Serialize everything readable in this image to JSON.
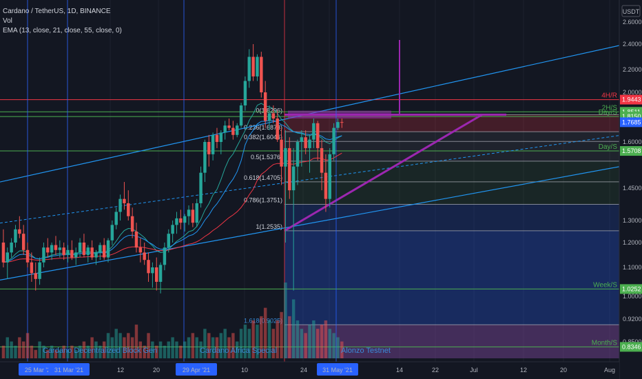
{
  "legend": {
    "symbol": "Cardano / TetherUS, 1D, BINANCE",
    "volume": "Vol",
    "ema": "EMA (13, close, 21, close, 55, close, 0)"
  },
  "axis": {
    "currency": "USDT",
    "price_ticks": [
      "2.6000",
      "2.4000",
      "2.2000",
      "2.0000",
      "1.8000",
      "1.6000",
      "1.4500",
      "1.3000",
      "1.2000",
      "1.1000",
      "1.0000",
      "0.9200",
      "0.8500"
    ],
    "date_ticks": [
      "25 Mar '21",
      "31 Mar '21",
      "12",
      "20",
      "29 Apr '21",
      "10",
      "24",
      "31 May '21",
      "14",
      "22",
      "Jul",
      "12",
      "20",
      "Aug"
    ]
  },
  "price_badges": [
    {
      "value": "1.9443",
      "color": "#f23645"
    },
    {
      "value": "1.8511",
      "color": "#4caf50"
    },
    {
      "value": "1.8150",
      "color": "#4caf50"
    },
    {
      "value": "1.7685",
      "color": "#2962ff"
    },
    {
      "value": "1.5708",
      "color": "#4caf50"
    },
    {
      "value": "1.0252",
      "color": "#4caf50"
    },
    {
      "value": "0.8346",
      "color": "#4caf50"
    }
  ],
  "levels": [
    {
      "label": "4H/R",
      "value": 1.9443,
      "color": "#f23645"
    },
    {
      "label": "2H/S",
      "value": 1.8511,
      "color": "#4caf50"
    },
    {
      "label": "Day/S",
      "value": 1.815,
      "color": "#4caf50"
    },
    {
      "label": "Day/S",
      "value": 1.5708,
      "color": "#4caf50"
    },
    {
      "label": "Week/S",
      "value": 1.0252,
      "color": "#4caf50"
    },
    {
      "label": "Month/S",
      "value": 0.8346,
      "color": "#4caf50"
    }
  ],
  "fib_labels": [
    "0(1.8296)",
    "0.236(1.6873)",
    "0.382(1.6046)",
    "0.5(1.5376)",
    "0.618(1.4705)",
    "0.786(1.3751)",
    "1(1.2535)",
    "1.618(0.9025)"
  ],
  "events": [
    {
      "label": "Cardano Decentralized Block Gen",
      "color": "#3a8bd8"
    },
    {
      "label": "Cardano Africa Special",
      "color": "#3a8bd8"
    },
    {
      "label": "Alonzo Testnet",
      "color": "#3a8bd8"
    }
  ],
  "chart_data": {
    "type": "candlestick",
    "title": "Cardano / TetherUS, 1D, BINANCE",
    "x_start": "2021-03-04",
    "y_range": [
      0.8,
      2.66
    ],
    "candles": [
      [
        1.2,
        1.26,
        1.1,
        1.12
      ],
      [
        1.12,
        1.18,
        1.06,
        1.16
      ],
      [
        1.16,
        1.22,
        1.14,
        1.2
      ],
      [
        1.2,
        1.28,
        1.18,
        1.26
      ],
      [
        1.26,
        1.32,
        1.22,
        1.24
      ],
      [
        1.24,
        1.28,
        1.15,
        1.17
      ],
      [
        1.17,
        1.2,
        1.1,
        1.12
      ],
      [
        1.12,
        1.16,
        1.05,
        1.08
      ],
      [
        1.08,
        1.12,
        1.02,
        1.06
      ],
      [
        1.06,
        1.14,
        1.04,
        1.12
      ],
      [
        1.12,
        1.2,
        1.1,
        1.18
      ],
      [
        1.18,
        1.22,
        1.14,
        1.16
      ],
      [
        1.16,
        1.2,
        1.13,
        1.19
      ],
      [
        1.19,
        1.23,
        1.15,
        1.17
      ],
      [
        1.17,
        1.21,
        1.14,
        1.18
      ],
      [
        1.18,
        1.2,
        1.13,
        1.15
      ],
      [
        1.15,
        1.19,
        1.12,
        1.17
      ],
      [
        1.17,
        1.21,
        1.13,
        1.14
      ],
      [
        1.14,
        1.18,
        1.11,
        1.16
      ],
      [
        1.16,
        1.22,
        1.14,
        1.2
      ],
      [
        1.2,
        1.24,
        1.14,
        1.15
      ],
      [
        1.15,
        1.19,
        1.12,
        1.18
      ],
      [
        1.18,
        1.21,
        1.13,
        1.14
      ],
      [
        1.14,
        1.17,
        1.11,
        1.16
      ],
      [
        1.16,
        1.2,
        1.13,
        1.19
      ],
      [
        1.19,
        1.22,
        1.13,
        1.14
      ],
      [
        1.14,
        1.22,
        1.12,
        1.21
      ],
      [
        1.21,
        1.3,
        1.19,
        1.28
      ],
      [
        1.28,
        1.36,
        1.26,
        1.34
      ],
      [
        1.34,
        1.42,
        1.3,
        1.4
      ],
      [
        1.4,
        1.47,
        1.35,
        1.38
      ],
      [
        1.38,
        1.44,
        1.3,
        1.32
      ],
      [
        1.32,
        1.36,
        1.22,
        1.25
      ],
      [
        1.25,
        1.29,
        1.16,
        1.18
      ],
      [
        1.18,
        1.22,
        1.12,
        1.16
      ],
      [
        1.16,
        1.2,
        1.11,
        1.13
      ],
      [
        1.13,
        1.16,
        1.05,
        1.08
      ],
      [
        1.08,
        1.12,
        1.03,
        1.1
      ],
      [
        1.1,
        1.14,
        1.02,
        1.05
      ],
      [
        1.05,
        1.12,
        1.01,
        1.11
      ],
      [
        1.11,
        1.2,
        1.09,
        1.18
      ],
      [
        1.18,
        1.26,
        1.16,
        1.24
      ],
      [
        1.24,
        1.3,
        1.2,
        1.28
      ],
      [
        1.28,
        1.34,
        1.24,
        1.31
      ],
      [
        1.31,
        1.35,
        1.26,
        1.29
      ],
      [
        1.29,
        1.33,
        1.25,
        1.32
      ],
      [
        1.32,
        1.37,
        1.28,
        1.35
      ],
      [
        1.35,
        1.38,
        1.27,
        1.29
      ],
      [
        1.29,
        1.4,
        1.27,
        1.38
      ],
      [
        1.38,
        1.52,
        1.36,
        1.5
      ],
      [
        1.5,
        1.62,
        1.47,
        1.6
      ],
      [
        1.6,
        1.66,
        1.52,
        1.56
      ],
      [
        1.56,
        1.68,
        1.54,
        1.66
      ],
      [
        1.66,
        1.72,
        1.58,
        1.6
      ],
      [
        1.6,
        1.7,
        1.56,
        1.68
      ],
      [
        1.68,
        1.78,
        1.62,
        1.74
      ],
      [
        1.74,
        1.8,
        1.7,
        1.72
      ],
      [
        1.72,
        1.78,
        1.62,
        1.66
      ],
      [
        1.66,
        1.76,
        1.64,
        1.74
      ],
      [
        1.74,
        1.92,
        1.72,
        1.9
      ],
      [
        1.9,
        2.14,
        1.86,
        2.1
      ],
      [
        2.1,
        2.36,
        2.04,
        2.3
      ],
      [
        2.3,
        2.4,
        2.1,
        2.14
      ],
      [
        2.14,
        2.32,
        2.1,
        2.3
      ],
      [
        2.3,
        2.34,
        1.96,
        2.0
      ],
      [
        2.0,
        2.1,
        1.72,
        1.78
      ],
      [
        1.78,
        1.9,
        1.7,
        1.84
      ],
      [
        1.84,
        1.9,
        1.76,
        1.8
      ],
      [
        1.8,
        1.86,
        1.6,
        1.62
      ],
      [
        1.62,
        1.72,
        1.46,
        1.52
      ],
      [
        1.52,
        1.7,
        1.2,
        1.58
      ],
      [
        1.58,
        1.64,
        1.4,
        1.44
      ],
      [
        1.44,
        1.58,
        1.02,
        1.52
      ],
      [
        1.52,
        1.62,
        1.46,
        1.6
      ],
      [
        1.6,
        1.7,
        1.52,
        1.64
      ],
      [
        1.64,
        1.7,
        1.56,
        1.58
      ],
      [
        1.58,
        1.66,
        1.5,
        1.62
      ],
      [
        1.62,
        1.8,
        1.58,
        1.76
      ],
      [
        1.76,
        1.78,
        1.54,
        1.58
      ],
      [
        1.58,
        1.62,
        1.44,
        1.5
      ],
      [
        1.5,
        1.56,
        1.34,
        1.4
      ],
      [
        1.4,
        1.58,
        1.36,
        1.56
      ],
      [
        1.56,
        1.76,
        1.54,
        1.72
      ],
      [
        1.72,
        1.8,
        1.7,
        1.77
      ],
      [
        1.77,
        1.8,
        1.72,
        1.7685
      ]
    ],
    "volumes": [
      3,
      5,
      4,
      3,
      5,
      4,
      6,
      3,
      2,
      4,
      3,
      2,
      3,
      2,
      2,
      3,
      2,
      3,
      2,
      3,
      4,
      3,
      5,
      4,
      3,
      4,
      6,
      5,
      7,
      6,
      5,
      6,
      5,
      8,
      4,
      3,
      6,
      4,
      3,
      4,
      3,
      4,
      5,
      4,
      3,
      4,
      5,
      6,
      5,
      4,
      7,
      6,
      5,
      5,
      6,
      7,
      5,
      6,
      4,
      7,
      8,
      7,
      9,
      8,
      10,
      12,
      9,
      7,
      9,
      11,
      18,
      10,
      14,
      9,
      7,
      6,
      8,
      9,
      7,
      8,
      9,
      7,
      6,
      5,
      4
    ]
  }
}
